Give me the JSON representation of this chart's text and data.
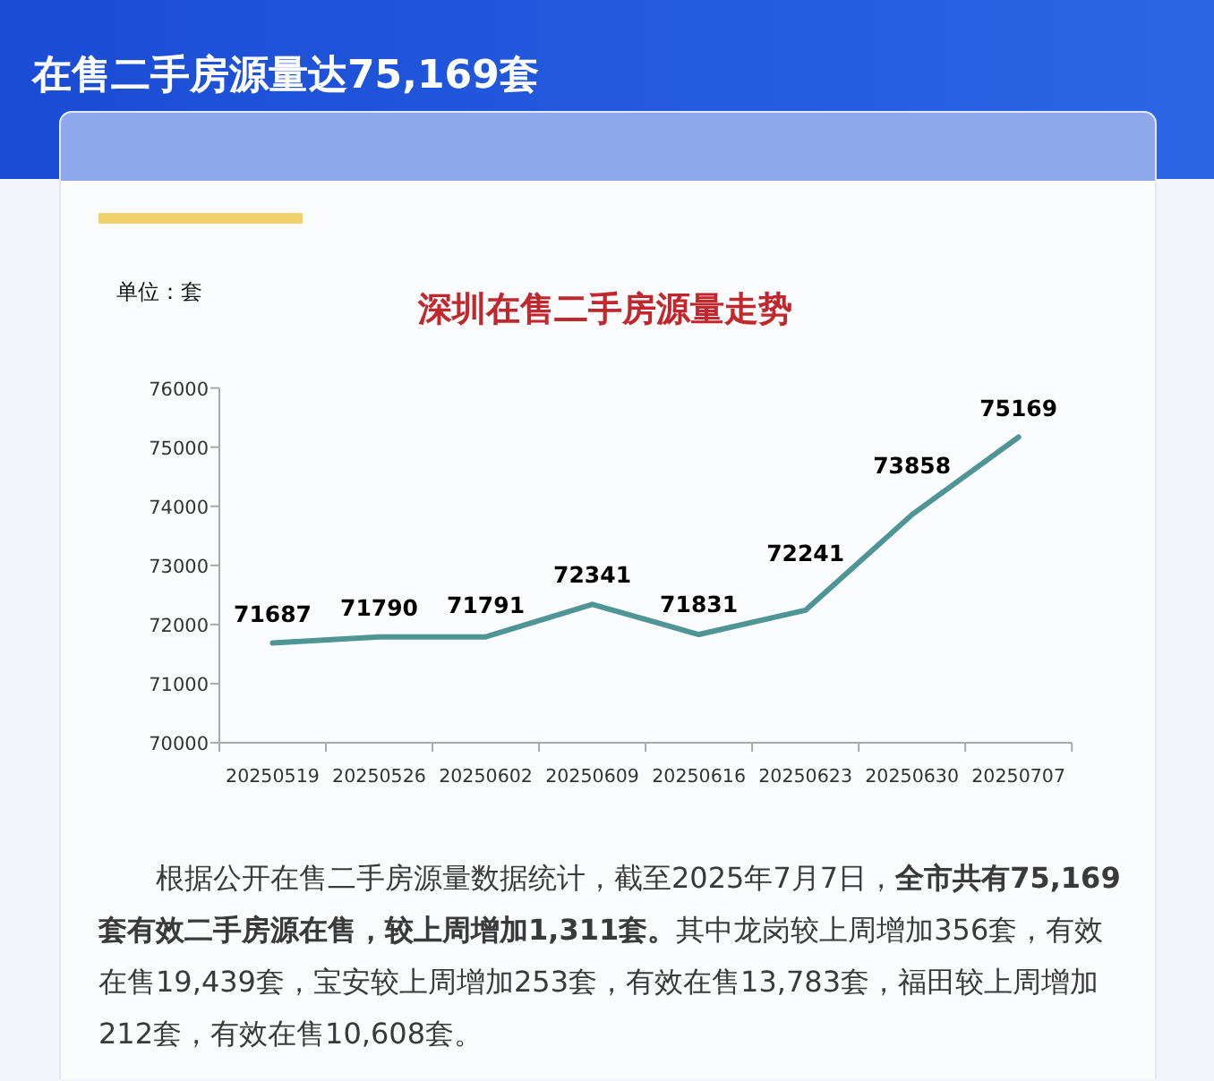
{
  "chart_data": {
    "type": "line",
    "title": "深圳在售二手房源量走势",
    "ylabel": "单位：套",
    "categories": [
      "20250519",
      "20250526",
      "20250602",
      "20250609",
      "20250616",
      "20250623",
      "20250630",
      "20250707"
    ],
    "series": [
      {
        "color": "#4f9595",
        "values": [
          71687,
          71790,
          71791,
          72341,
          71831,
          72241,
          73858,
          75169
        ]
      }
    ],
    "ylim": [
      70000,
      76000
    ],
    "yticks": [
      70000,
      71000,
      72000,
      73000,
      74000,
      75000,
      76000
    ],
    "data_labels": true,
    "line_style": "solid",
    "annotations": [
      "在售二手房源量达75,169套",
      "根据公开在售二手房源量数据统计，截至2025年7月7日，",
      "全市共有75,169",
      "套有效二手房源在售，较上周增加1,311套。",
      "其中龙岗较上周增加356套，有效",
      "在售19,439套，宝安较上周增加253套，有效在售13,783套，福田较上周增加",
      "212套，有效在售10,608套。"
    ]
  }
}
